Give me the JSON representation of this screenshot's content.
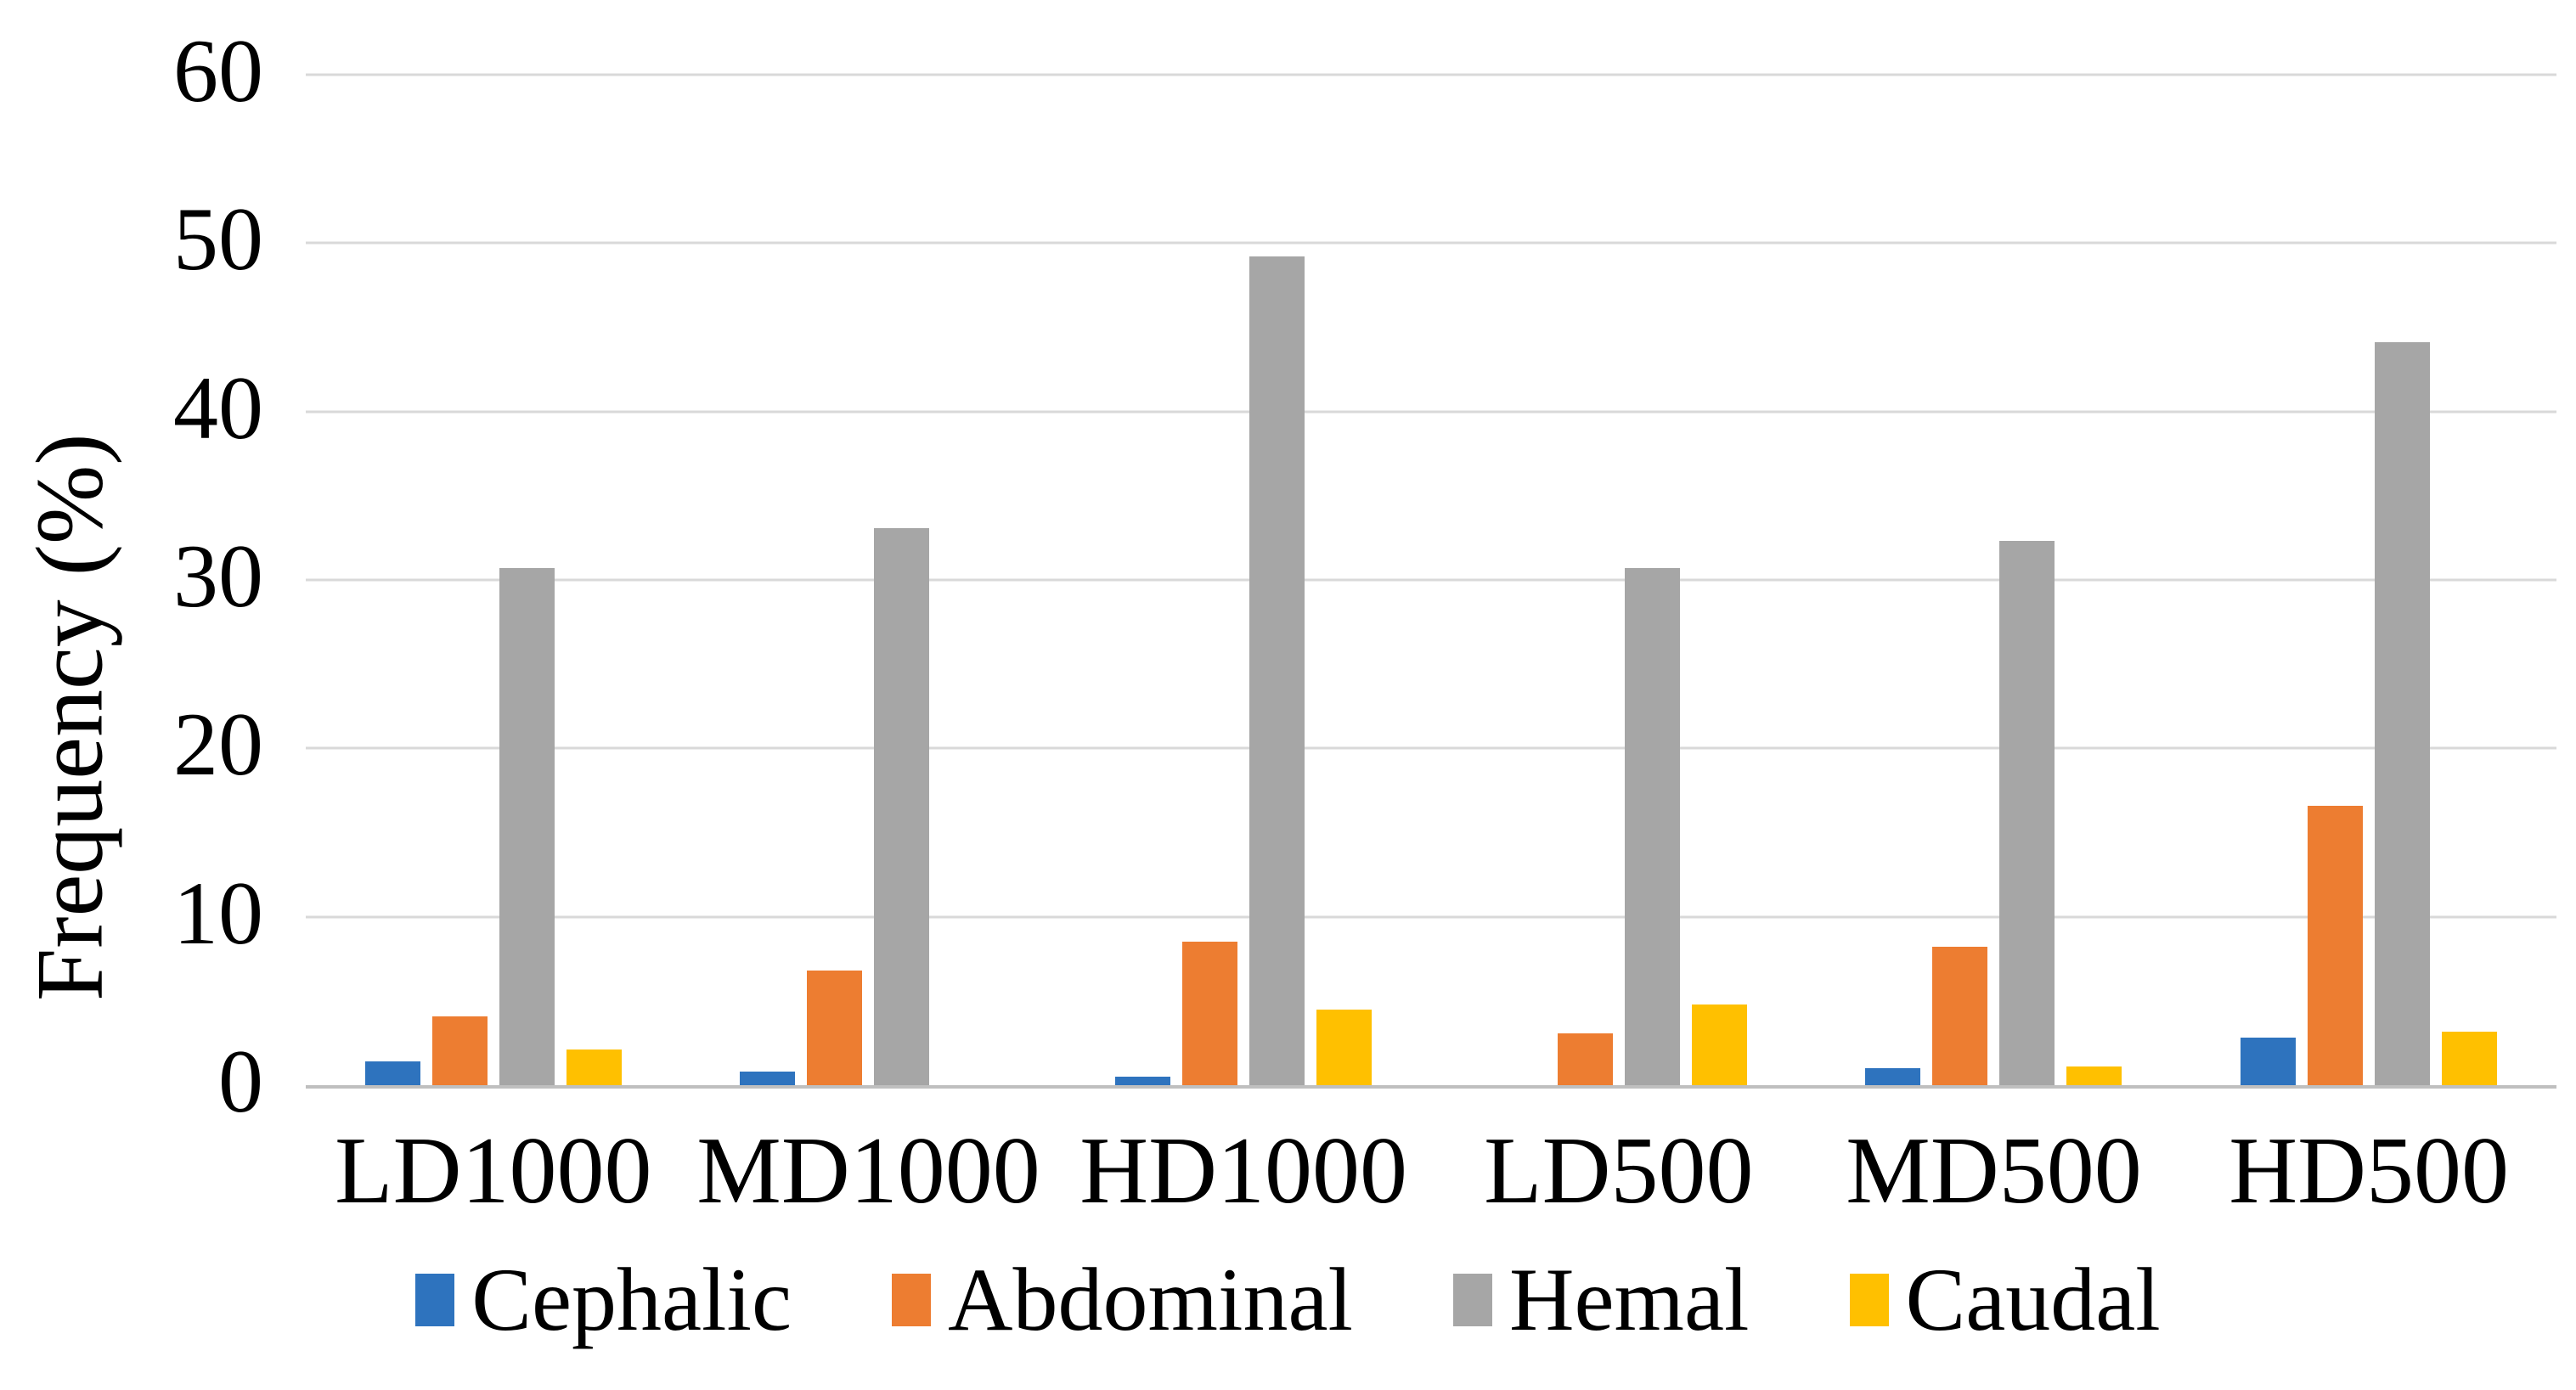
{
  "chart_data": {
    "type": "bar",
    "title": "",
    "xlabel": "",
    "ylabel": "Frequency (%)",
    "ylim": [
      0,
      60
    ],
    "ytick_step": 10,
    "yticks": [
      0,
      10,
      20,
      30,
      40,
      50,
      60
    ],
    "grid": "horizontal",
    "legend_position": "bottom",
    "categories": [
      "LD1000",
      "MD1000",
      "HD1000",
      "LD500",
      "MD500",
      "HD500"
    ],
    "series": [
      {
        "name": "Cephalic",
        "color": "#2E73BE",
        "values": [
          1.4,
          0.8,
          0.5,
          0,
          1.0,
          2.8
        ]
      },
      {
        "name": "Abdominal",
        "color": "#ED7D31",
        "values": [
          4.1,
          6.8,
          8.5,
          3.1,
          8.2,
          16.6
        ]
      },
      {
        "name": "Hemal",
        "color": "#A6A6A6",
        "values": [
          30.7,
          33.1,
          49.2,
          30.7,
          32.3,
          44.1
        ]
      },
      {
        "name": "Caudal",
        "color": "#FFC000",
        "values": [
          2.1,
          0,
          4.5,
          4.8,
          1.1,
          3.2
        ]
      }
    ],
    "axis_color": "#BFBFBF",
    "gridline_color": "#D9D9D9",
    "text_color": "#000000"
  }
}
